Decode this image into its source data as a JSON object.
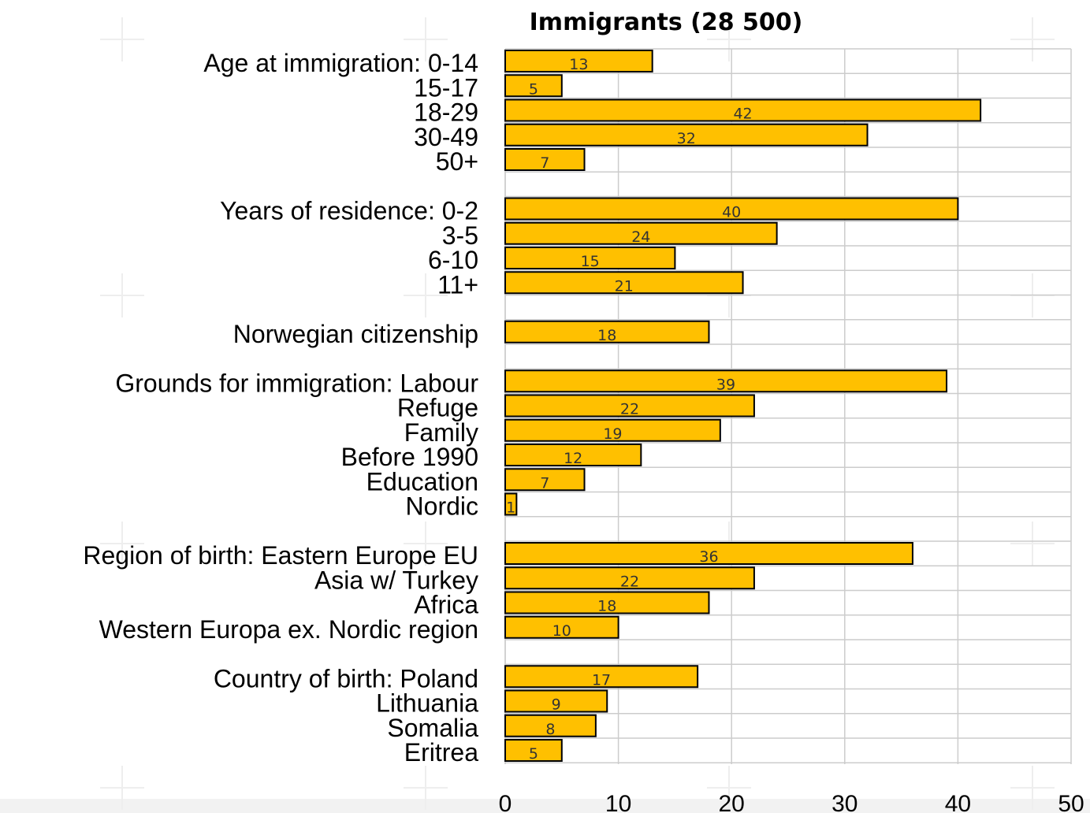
{
  "chart_data": {
    "type": "bar",
    "orientation": "horizontal",
    "title": "Immigrants (28 500)",
    "xlim": [
      0,
      50
    ],
    "xticks": [
      0,
      10,
      20,
      30,
      40,
      50
    ],
    "grid": true,
    "bar_color": "#ffc000",
    "bar_edge_color": "#000000",
    "groups": [
      {
        "items": [
          {
            "label": "Age at immigration: 0-14",
            "value": 13
          },
          {
            "label": "15-17",
            "value": 5
          },
          {
            "label": "18-29",
            "value": 42
          },
          {
            "label": "30-49",
            "value": 32
          },
          {
            "label": "50+",
            "value": 7
          }
        ]
      },
      {
        "items": [
          {
            "label": "Years of residence: 0-2",
            "value": 40
          },
          {
            "label": "3-5",
            "value": 24
          },
          {
            "label": "6-10",
            "value": 15
          },
          {
            "label": "11+",
            "value": 21
          }
        ]
      },
      {
        "items": [
          {
            "label": "Norwegian citizenship",
            "value": 18
          }
        ]
      },
      {
        "items": [
          {
            "label": "Grounds for immigration: Labour",
            "value": 39
          },
          {
            "label": "Refuge",
            "value": 22
          },
          {
            "label": "Family",
            "value": 19
          },
          {
            "label": "Before 1990",
            "value": 12
          },
          {
            "label": "Education",
            "value": 7
          },
          {
            "label": "Nordic",
            "value": 1
          }
        ]
      },
      {
        "items": [
          {
            "label": "Region of birth: Eastern Europe EU",
            "value": 36
          },
          {
            "label": "Asia w/ Turkey",
            "value": 22
          },
          {
            "label": "Africa",
            "value": 18
          },
          {
            "label": "Western Europa ex. Nordic region",
            "value": 10
          }
        ]
      },
      {
        "items": [
          {
            "label": "Country of birth: Poland",
            "value": 17
          },
          {
            "label": "Lithuania",
            "value": 9
          },
          {
            "label": "Somalia",
            "value": 8
          },
          {
            "label": "Eritrea",
            "value": 5
          }
        ]
      }
    ]
  }
}
